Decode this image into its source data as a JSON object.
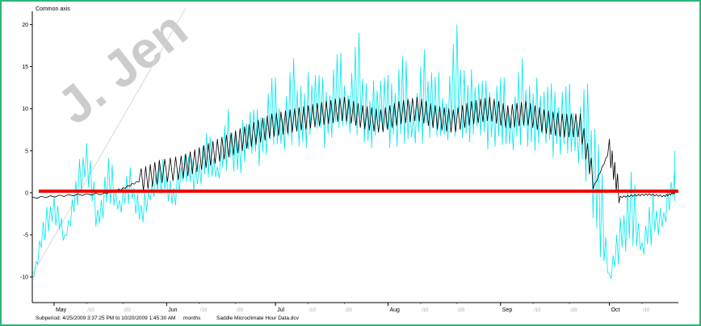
{
  "window": {
    "border_color": "#2fb37a"
  },
  "watermark": {
    "text": "J. Jen"
  },
  "chart_data": {
    "type": "line",
    "ylabel": "Common axis",
    "ylim": [
      -12,
      21
    ],
    "yticks": [
      20,
      15,
      10,
      5,
      0,
      -5,
      -10
    ],
    "xlim": [
      "2009-04-25",
      "2009-10-20"
    ],
    "x_month_labels": [
      {
        "date": "2009-05-01",
        "label": "May"
      },
      {
        "date": "2009-06-01",
        "label": "Jun"
      },
      {
        "date": "2009-07-01",
        "label": "Jul"
      },
      {
        "date": "2009-08-01",
        "label": "Aug"
      },
      {
        "date": "2009-09-01",
        "label": "Sep"
      },
      {
        "date": "2009-10-01",
        "label": "Oct"
      }
    ],
    "x_day_labels": [
      {
        "date": "2009-05-10",
        "label": "/10"
      },
      {
        "date": "2009-05-20",
        "label": "/20"
      },
      {
        "date": "2009-06-10",
        "label": "/10"
      },
      {
        "date": "2009-06-20",
        "label": "/20"
      },
      {
        "date": "2009-07-10",
        "label": "/10"
      },
      {
        "date": "2009-07-20",
        "label": "/20"
      },
      {
        "date": "2009-08-10",
        "label": "/10"
      },
      {
        "date": "2009-08-20",
        "label": "/20"
      },
      {
        "date": "2009-09-10",
        "label": "/10"
      },
      {
        "date": "2009-09-20",
        "label": "/20"
      },
      {
        "date": "2009-10-10",
        "label": "/10"
      }
    ],
    "series": [
      {
        "color": "#00e8ee",
        "x": [
          "2009-04-25",
          "2009-04-28",
          "2009-05-01",
          "2009-05-04",
          "2009-05-07",
          "2009-05-10",
          "2009-05-13",
          "2009-05-16",
          "2009-05-19",
          "2009-05-22",
          "2009-05-25",
          "2009-05-28",
          "2009-05-31",
          "2009-06-03",
          "2009-06-06",
          "2009-06-09",
          "2009-06-12",
          "2009-06-15",
          "2009-06-18",
          "2009-06-21",
          "2009-06-24",
          "2009-06-27",
          "2009-06-30",
          "2009-07-03",
          "2009-07-06",
          "2009-07-09",
          "2009-07-12",
          "2009-07-15",
          "2009-07-18",
          "2009-07-21",
          "2009-07-24",
          "2009-07-27",
          "2009-07-30",
          "2009-08-02",
          "2009-08-05",
          "2009-08-08",
          "2009-08-11",
          "2009-08-14",
          "2009-08-17",
          "2009-08-20",
          "2009-08-23",
          "2009-08-26",
          "2009-08-29",
          "2009-09-01",
          "2009-09-04",
          "2009-09-07",
          "2009-09-10",
          "2009-09-13",
          "2009-09-16",
          "2009-09-19",
          "2009-09-22",
          "2009-09-25",
          "2009-09-28",
          "2009-10-01",
          "2009-10-04",
          "2009-10-07",
          "2009-10-10",
          "2009-10-13",
          "2009-10-16",
          "2009-10-19"
        ],
        "values": [
          -10,
          -3,
          1,
          -5,
          2,
          8,
          -2,
          5,
          0,
          3,
          -1,
          2,
          4,
          1,
          6,
          3,
          8,
          4,
          10,
          7,
          12,
          9,
          15,
          11,
          16,
          13,
          17,
          12,
          18,
          14,
          19,
          12,
          16,
          13,
          18,
          11,
          17,
          15,
          13,
          20,
          14,
          16,
          12,
          15,
          11,
          16,
          13,
          15,
          12,
          14,
          11,
          13,
          8,
          -9,
          -3,
          4,
          -5,
          0,
          -2,
          5
        ],
        "min_values": [
          -11,
          -6,
          -4,
          -6,
          -2,
          1,
          -5,
          -1,
          -3,
          -1,
          -4,
          -1,
          0,
          -2,
          1,
          0,
          2,
          1,
          3,
          2,
          4,
          3,
          6,
          4,
          6,
          5,
          7,
          5,
          8,
          6,
          7,
          5,
          7,
          5,
          6,
          5,
          6,
          7,
          5,
          7,
          6,
          6,
          5,
          6,
          4,
          6,
          5,
          5,
          4,
          5,
          3,
          1,
          -7,
          -11,
          -8,
          -6,
          -8,
          -6,
          -4,
          -1
        ]
      },
      {
        "color": "#000000",
        "x": [
          "2009-04-25",
          "2009-05-05",
          "2009-05-15",
          "2009-05-20",
          "2009-05-25",
          "2009-05-30",
          "2009-06-05",
          "2009-06-10",
          "2009-06-15",
          "2009-06-20",
          "2009-06-25",
          "2009-06-30",
          "2009-07-05",
          "2009-07-10",
          "2009-07-15",
          "2009-07-20",
          "2009-07-25",
          "2009-07-30",
          "2009-08-04",
          "2009-08-09",
          "2009-08-14",
          "2009-08-19",
          "2009-08-24",
          "2009-08-29",
          "2009-09-03",
          "2009-09-08",
          "2009-09-13",
          "2009-09-18",
          "2009-09-23",
          "2009-09-27",
          "2009-10-01",
          "2009-10-04",
          "2009-10-08",
          "2009-10-12",
          "2009-10-16",
          "2009-10-19"
        ],
        "values": [
          -0.6,
          -0.3,
          -0.1,
          0.5,
          1.5,
          2.5,
          3,
          4,
          5,
          6,
          7,
          8,
          8.5,
          9,
          9.5,
          10,
          9,
          8.5,
          9.5,
          10,
          9,
          8.5,
          9.5,
          10,
          9,
          9.5,
          8.5,
          8,
          8,
          1,
          5,
          -0.5,
          -0.3,
          -0.2,
          -0.4,
          0
        ]
      },
      {
        "color": "#ee0000",
        "x": [
          "2009-04-25",
          "2009-10-20"
        ],
        "values": [
          0.2,
          0.2
        ]
      }
    ]
  },
  "footer": {
    "subperiod": "Subperiod: 4/25/2009 3:37:25 PM to 10/20/2009 1:45:30 AM",
    "unit": "months",
    "file": "Saddle Microclimate Hour Data.dcv"
  }
}
